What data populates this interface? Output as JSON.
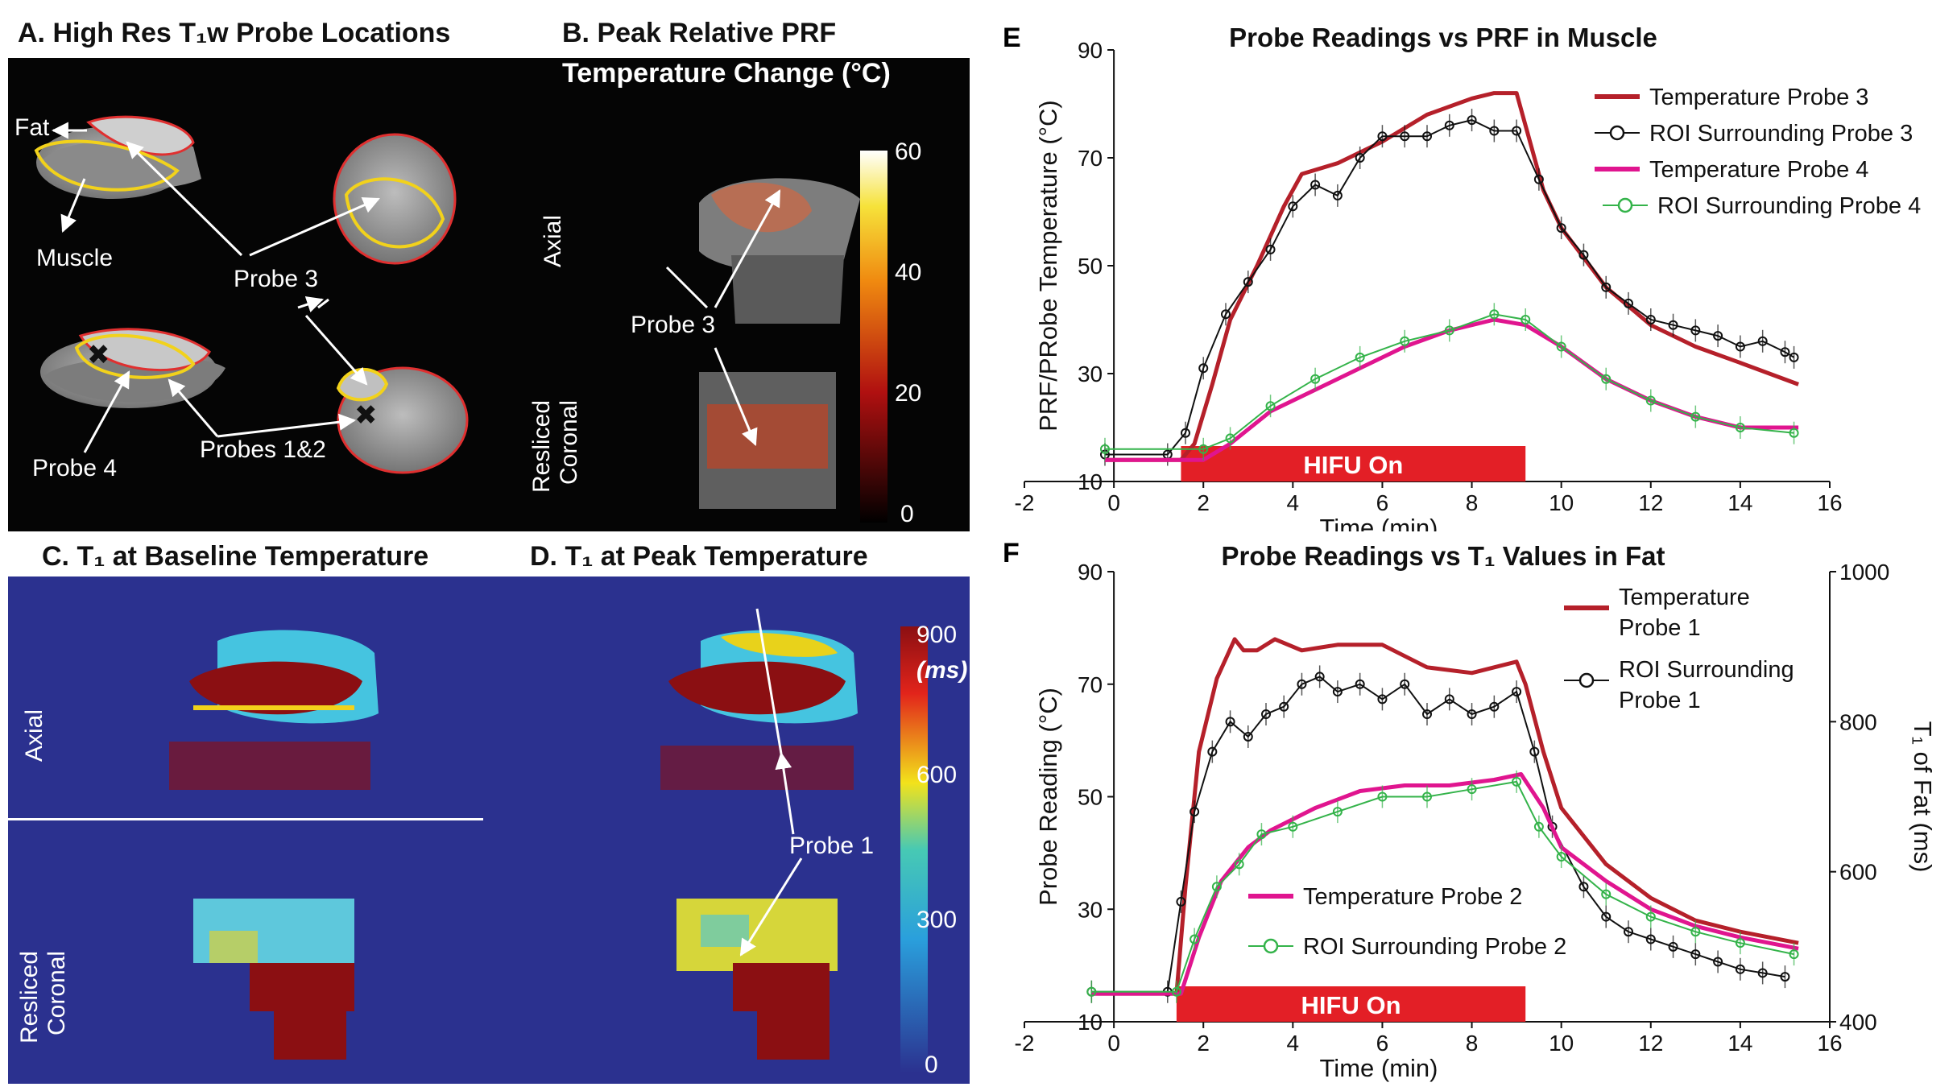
{
  "panelA": {
    "title": "A. High Res T₁w Probe Locations",
    "labels": {
      "fat": "Fat",
      "muscle": "Muscle",
      "probe3": "Probe 3",
      "probe4": "Probe 4",
      "probes12": "Probes 1&2"
    }
  },
  "panelB": {
    "title_line1": "B. Peak Relative PRF",
    "title_line2": "Temperature Change (°C)",
    "axial": "Axial",
    "coronal_line1": "Resliced",
    "coronal_line2": "Coronal",
    "probe3": "Probe 3",
    "colorbar_ticks": [
      "60",
      "40",
      "20",
      "0"
    ]
  },
  "panelC": {
    "title": "C. T₁ at Baseline Temperature",
    "axial": "Axial",
    "coronal_line1": "Resliced",
    "coronal_line2": "Coronal"
  },
  "panelD": {
    "title": "D. T₁ at Peak Temperature",
    "probe1": "Probe 1",
    "colorbar_ticks": [
      "900",
      "600",
      "300",
      "0"
    ],
    "colorbar_unit": "(ms)"
  },
  "chart_data": [
    {
      "type": "line",
      "panel": "E",
      "title": "Probe Readings vs PRF in Muscle",
      "xlabel": "Time (min)",
      "ylabel": "PRF/PRobe Temperature (°C)",
      "xlim": [
        -2,
        16
      ],
      "ylim": [
        10,
        90
      ],
      "xticks": [
        "-2",
        "0",
        "2",
        "4",
        "6",
        "8",
        "10",
        "12",
        "14",
        "16"
      ],
      "yticks": [
        "10",
        "30",
        "50",
        "70",
        "90"
      ],
      "annotation": {
        "text": "HIFU On",
        "x_start": 1.5,
        "x_end": 9.2,
        "color": "#e31f26"
      },
      "series": [
        {
          "name": "Temperature Probe 3",
          "color": "#b5202a",
          "style": "line",
          "x": [
            -0.2,
            1.5,
            1.8,
            2.2,
            2.6,
            3.2,
            3.8,
            4.2,
            5,
            6,
            7,
            8,
            8.5,
            9,
            9.2,
            9.6,
            10,
            11,
            12,
            13,
            14,
            15.3
          ],
          "y": [
            14,
            14,
            17,
            28,
            40,
            50,
            61,
            67,
            69,
            73,
            78,
            81,
            82,
            82,
            76,
            64,
            57,
            46,
            39,
            35,
            32,
            28
          ]
        },
        {
          "name": "ROI Surrounding Probe 3",
          "color": "#111111",
          "style": "circles",
          "x": [
            -0.2,
            1.2,
            1.6,
            2,
            2.5,
            3,
            3.5,
            4,
            4.5,
            5,
            5.5,
            6,
            6.5,
            7,
            7.5,
            8,
            8.5,
            9,
            9.5,
            10,
            10.5,
            11,
            11.5,
            12,
            12.5,
            13,
            13.5,
            14,
            14.5,
            15,
            15.2
          ],
          "y": [
            15,
            15,
            19,
            31,
            41,
            47,
            53,
            61,
            65,
            63,
            70,
            74,
            74,
            74,
            76,
            77,
            75,
            75,
            66,
            57,
            52,
            46,
            43,
            40,
            39,
            38,
            37,
            35,
            36,
            34,
            33
          ]
        },
        {
          "name": "Temperature Probe 4",
          "color": "#e0158f",
          "style": "line",
          "x": [
            -0.2,
            2,
            2.6,
            3.5,
            4.5,
            5.5,
            6.5,
            7.5,
            8.5,
            9.2,
            10,
            11,
            12,
            13,
            14,
            15.3
          ],
          "y": [
            14,
            14,
            17,
            23,
            27,
            31,
            35,
            38,
            40,
            39,
            35,
            29,
            25,
            22,
            20,
            20
          ]
        },
        {
          "name": "ROI Surrounding Probe 4",
          "color": "#34b34a",
          "style": "circles",
          "x": [
            -0.2,
            2,
            2.6,
            3.5,
            4.5,
            5.5,
            6.5,
            7.5,
            8.5,
            9.2,
            10,
            11,
            12,
            13,
            14,
            15.2
          ],
          "y": [
            16,
            16,
            18,
            24,
            29,
            33,
            36,
            38,
            41,
            40,
            35,
            29,
            25,
            22,
            20,
            19
          ]
        }
      ]
    },
    {
      "type": "line",
      "panel": "F",
      "title": "Probe Readings vs T₁ Values in Fat",
      "xlabel": "Time (min)",
      "ylabel": "Probe Reading (°C)",
      "y2label": "T₁ of Fat (ms)",
      "xlim": [
        -2,
        16
      ],
      "ylim": [
        10,
        90
      ],
      "y2lim": [
        400,
        1000
      ],
      "xticks": [
        "-2",
        "0",
        "2",
        "4",
        "6",
        "8",
        "10",
        "12",
        "14",
        "16"
      ],
      "yticks": [
        "10",
        "30",
        "50",
        "70",
        "90"
      ],
      "y2ticks": [
        "400",
        "600",
        "800",
        "1000"
      ],
      "annotation": {
        "text": "HIFU On",
        "x_start": 1.4,
        "x_end": 9.2,
        "color": "#e31f26"
      },
      "series": [
        {
          "name": "Temperature Probe 1",
          "color": "#b5202a",
          "style": "line",
          "x": [
            -0.5,
            1.4,
            1.6,
            1.9,
            2.3,
            2.7,
            2.9,
            3.2,
            3.6,
            4.2,
            5,
            6,
            7,
            8,
            9,
            9.2,
            9.6,
            10,
            11,
            12,
            13,
            14,
            15.3
          ],
          "y": [
            15,
            15,
            34,
            58,
            71,
            78,
            76,
            76,
            78,
            76,
            77,
            77,
            73,
            72,
            74,
            70,
            58,
            48,
            38,
            32,
            28,
            26,
            24
          ]
        },
        {
          "name": "ROI Surrounding Probe 1",
          "color": "#111111",
          "style": "circles",
          "axis": "y2",
          "x": [
            -0.5,
            1.2,
            1.5,
            1.8,
            2.2,
            2.6,
            3,
            3.4,
            3.8,
            4.2,
            4.6,
            5,
            5.5,
            6,
            6.5,
            7,
            7.5,
            8,
            8.5,
            9,
            9.4,
            9.8,
            10.5,
            11,
            11.5,
            12,
            12.5,
            13,
            13.5,
            14,
            14.5,
            15
          ],
          "y": [
            440,
            440,
            560,
            680,
            760,
            800,
            780,
            810,
            820,
            850,
            860,
            840,
            850,
            830,
            850,
            810,
            830,
            810,
            820,
            840,
            760,
            660,
            580,
            540,
            520,
            510,
            500,
            490,
            480,
            470,
            465,
            460
          ]
        },
        {
          "name": "Temperature Probe 2",
          "color": "#e0158f",
          "style": "line",
          "x": [
            -0.5,
            1.5,
            1.9,
            2.4,
            3,
            3.5,
            4.5,
            5.5,
            6.5,
            7.5,
            8.5,
            9.1,
            9.6,
            10,
            11,
            12,
            13,
            14,
            15.3
          ],
          "y": [
            15,
            15,
            25,
            35,
            41,
            44,
            48,
            51,
            52,
            52,
            53,
            54,
            48,
            41,
            35,
            30,
            27,
            25,
            23
          ]
        },
        {
          "name": "ROI Surrounding Probe 2",
          "color": "#34b34a",
          "style": "circles",
          "axis": "y2",
          "x": [
            -0.5,
            1.4,
            1.8,
            2.3,
            2.8,
            3.3,
            4,
            5,
            6,
            7,
            8,
            9,
            9.5,
            10,
            11,
            12,
            13,
            14,
            15.2
          ],
          "y": [
            440,
            440,
            510,
            580,
            610,
            650,
            660,
            680,
            700,
            700,
            710,
            720,
            660,
            620,
            570,
            540,
            520,
            505,
            490
          ]
        }
      ]
    }
  ]
}
